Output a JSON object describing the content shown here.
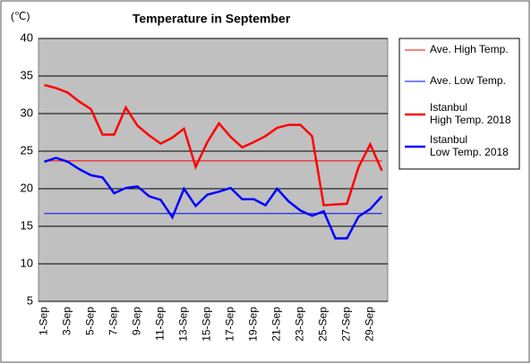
{
  "chart_data": {
    "type": "line",
    "title": "Temperature in September",
    "y_unit_label": "(℃)",
    "categories": [
      "1-Sep",
      null,
      "3-Sep",
      null,
      "5-Sep",
      null,
      "7-Sep",
      null,
      "9-Sep",
      null,
      "11-Sep",
      null,
      "13-Sep",
      null,
      "15-Sep",
      null,
      "17-Sep",
      null,
      "19-Sep",
      null,
      "21-Sep",
      null,
      "23-Sep",
      null,
      "25-Sep",
      null,
      "27-Sep",
      null,
      "29-Sep",
      null
    ],
    "ylim": [
      5,
      40
    ],
    "yticks": [
      5,
      10,
      15,
      20,
      25,
      30,
      35,
      40
    ],
    "grid": true,
    "legend": "right",
    "series": [
      {
        "name": "Ave. High Temp.",
        "color": "#ff0000",
        "width": 1,
        "values": [
          23.7,
          23.7,
          23.7,
          23.7,
          23.7,
          23.7,
          23.7,
          23.7,
          23.7,
          23.7,
          23.7,
          23.7,
          23.7,
          23.7,
          23.7,
          23.7,
          23.7,
          23.7,
          23.7,
          23.7,
          23.7,
          23.7,
          23.7,
          23.7,
          23.7,
          23.7,
          23.7,
          23.7,
          23.7,
          23.7
        ]
      },
      {
        "name": "Ave. Low Temp.",
        "color": "#0000ff",
        "width": 1,
        "values": [
          16.7,
          16.7,
          16.7,
          16.7,
          16.7,
          16.7,
          16.7,
          16.7,
          16.7,
          16.7,
          16.7,
          16.7,
          16.7,
          16.7,
          16.7,
          16.7,
          16.7,
          16.7,
          16.7,
          16.7,
          16.7,
          16.7,
          16.7,
          16.7,
          16.7,
          16.7,
          16.7,
          16.7,
          16.7,
          16.7
        ]
      },
      {
        "name": "Istanbul\nHigh Temp. 2018",
        "color": "#ff0000",
        "width": 2.5,
        "values": [
          33.8,
          33.4,
          32.8,
          31.6,
          30.6,
          27.2,
          27.2,
          30.8,
          28.4,
          27.1,
          26.0,
          26.8,
          28.0,
          22.9,
          26.2,
          28.7,
          26.9,
          25.5,
          26.2,
          27.0,
          28.1,
          28.5,
          28.5,
          27.0,
          17.8,
          17.9,
          18.0,
          22.9,
          25.9,
          22.4
        ]
      },
      {
        "name": "Istanbul\nLow Temp. 2018",
        "color": "#0000ff",
        "width": 2.5,
        "values": [
          23.6,
          24.1,
          23.6,
          22.6,
          21.8,
          21.5,
          19.4,
          20.1,
          20.3,
          19.0,
          18.5,
          16.2,
          20.0,
          17.7,
          19.2,
          19.6,
          20.1,
          18.6,
          18.6,
          17.8,
          20.0,
          18.3,
          17.1,
          16.4,
          17.0,
          13.4,
          13.4,
          16.3,
          17.3,
          19.0
        ]
      }
    ]
  }
}
